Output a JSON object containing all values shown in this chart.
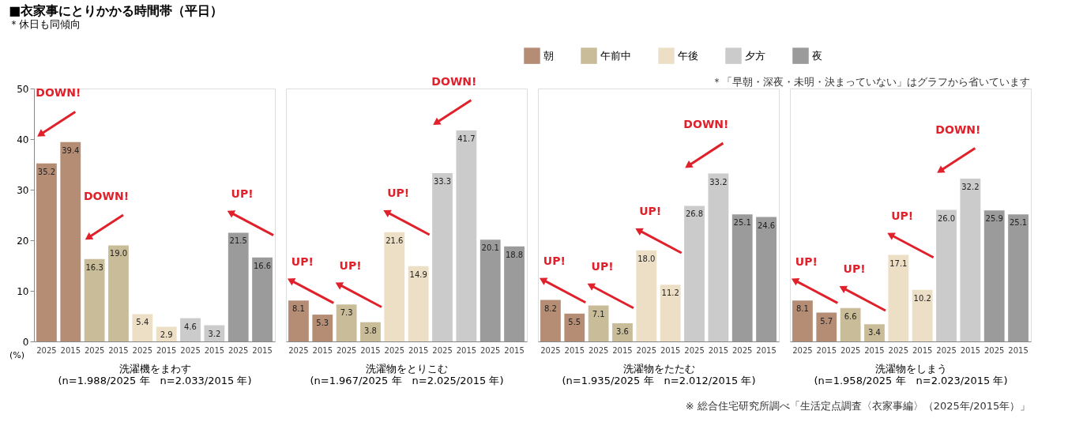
{
  "chart_data": [
    {
      "type": "bar",
      "title": "■衣家事にとりかかる時間帯（平日）",
      "subtitle": "＊休日も同傾向",
      "xlabel": "洗濯機をまわす",
      "ylabel": "(%)",
      "legend": "top right",
      "ylim": [
        0,
        50
      ],
      "yticks": [
        0,
        10,
        20,
        30,
        40,
        50
      ],
      "categories": [
        "2025",
        "2015",
        "2025",
        "2015",
        "2025",
        "2015",
        "2025",
        "2015",
        "2025",
        "2015"
      ],
      "series": [
        {
          "name": "朝",
          "color": "#b58d74",
          "values": [
            35.2,
            39.4,
            null,
            null,
            null,
            null,
            null,
            null,
            null,
            null
          ],
          "value_labels": [
            "35.2",
            "39.4",
            null,
            null,
            null,
            null,
            null,
            null,
            null,
            null
          ]
        },
        {
          "name": "午前中",
          "color": "#c9bc98",
          "values": [
            null,
            null,
            16.3,
            19.0,
            null,
            null,
            null,
            null,
            null,
            null
          ],
          "value_labels": [
            null,
            null,
            "16.3",
            "19.0",
            null,
            null,
            null,
            null,
            null,
            null
          ]
        },
        {
          "name": "午後",
          "color": "#ecdfc6",
          "values": [
            null,
            null,
            null,
            null,
            5.4,
            2.9,
            null,
            null,
            null,
            null
          ],
          "value_labels": [
            null,
            null,
            null,
            null,
            "5.4",
            "2.9",
            null,
            null,
            null,
            null
          ]
        },
        {
          "name": "夕方",
          "color": "#cbcbcb",
          "values": [
            null,
            null,
            null,
            null,
            null,
            null,
            4.6,
            3.2,
            null,
            null
          ],
          "value_labels": [
            null,
            null,
            null,
            null,
            null,
            null,
            "4.6",
            "3.2",
            null,
            null
          ]
        },
        {
          "name": "夜",
          "color": "#9b9b9b",
          "values": [
            null,
            null,
            null,
            null,
            null,
            null,
            null,
            null,
            21.5,
            16.6
          ],
          "value_labels": [
            null,
            null,
            null,
            null,
            null,
            null,
            null,
            null,
            "21.5",
            "16.6"
          ]
        }
      ],
      "annotations": [
        "(n=1.988/2025 年　n=2.033/2015 年)",
        "DOWN!",
        "DOWN!",
        "UP!"
      ]
    },
    {
      "type": "bar",
      "xlabel": "洗濯物をとりこむ",
      "tick_labels": "x",
      "ylim": [
        0,
        50
      ],
      "categories": [
        "2025",
        "2015",
        "2025",
        "2015",
        "2025",
        "2015",
        "2025",
        "2015",
        "2025",
        "2015"
      ],
      "series": [
        {
          "name": "朝",
          "color": "#b58d74",
          "values": [
            8.1,
            5.3,
            null,
            null,
            null,
            null,
            null,
            null,
            null,
            null
          ],
          "value_labels": [
            "8.1",
            "5.3",
            null,
            null,
            null,
            null,
            null,
            null,
            null,
            null
          ]
        },
        {
          "name": "午前中",
          "color": "#c9bc98",
          "values": [
            null,
            null,
            7.3,
            3.8,
            null,
            null,
            null,
            null,
            null,
            null
          ],
          "value_labels": [
            null,
            null,
            "7.3",
            "3.8",
            null,
            null,
            null,
            null,
            null,
            null
          ]
        },
        {
          "name": "午後",
          "color": "#ecdfc6",
          "values": [
            null,
            null,
            null,
            null,
            21.6,
            14.9,
            null,
            null,
            null,
            null
          ],
          "value_labels": [
            null,
            null,
            null,
            null,
            "21.6",
            "14.9",
            null,
            null,
            null,
            null
          ]
        },
        {
          "name": "夕方",
          "color": "#cbcbcb",
          "values": [
            null,
            null,
            null,
            null,
            null,
            null,
            33.3,
            41.7,
            null,
            null
          ],
          "value_labels": [
            null,
            null,
            null,
            null,
            null,
            null,
            "33.3",
            "41.7",
            null,
            null
          ]
        },
        {
          "name": "夜",
          "color": "#9b9b9b",
          "values": [
            null,
            null,
            null,
            null,
            null,
            null,
            null,
            null,
            20.1,
            18.8
          ],
          "value_labels": [
            null,
            null,
            null,
            null,
            null,
            null,
            null,
            null,
            "20.1",
            "18.8"
          ]
        }
      ],
      "annotations": [
        "(n=1.967/2025 年　n=2.025/2015 年)",
        "UP!",
        "UP!",
        "UP!",
        "DOWN!"
      ]
    },
    {
      "type": "bar",
      "xlabel": "洗濯物をたたむ",
      "tick_labels": "x",
      "ylim": [
        0,
        50
      ],
      "categories": [
        "2025",
        "2015",
        "2025",
        "2015",
        "2025",
        "2015",
        "2025",
        "2015",
        "2025",
        "2015"
      ],
      "series": [
        {
          "name": "朝",
          "color": "#b58d74",
          "values": [
            8.2,
            5.5,
            null,
            null,
            null,
            null,
            null,
            null,
            null,
            null
          ],
          "value_labels": [
            "8.2",
            "5.5",
            null,
            null,
            null,
            null,
            null,
            null,
            null,
            null
          ]
        },
        {
          "name": "午前中",
          "color": "#c9bc98",
          "values": [
            null,
            null,
            7.1,
            3.6,
            null,
            null,
            null,
            null,
            null,
            null
          ],
          "value_labels": [
            null,
            null,
            "7.1",
            "3.6",
            null,
            null,
            null,
            null,
            null,
            null
          ]
        },
        {
          "name": "午後",
          "color": "#ecdfc6",
          "values": [
            null,
            null,
            null,
            null,
            18.0,
            11.2,
            null,
            null,
            null,
            null
          ],
          "value_labels": [
            null,
            null,
            null,
            null,
            "18.0",
            "11.2",
            null,
            null,
            null,
            null
          ]
        },
        {
          "name": "夕方",
          "color": "#cbcbcb",
          "values": [
            null,
            null,
            null,
            null,
            null,
            null,
            26.8,
            33.2,
            null,
            null
          ],
          "value_labels": [
            null,
            null,
            null,
            null,
            null,
            null,
            "26.8",
            "33.2",
            null,
            null
          ]
        },
        {
          "name": "夜",
          "color": "#9b9b9b",
          "values": [
            null,
            null,
            null,
            null,
            null,
            null,
            null,
            null,
            25.1,
            24.6
          ],
          "value_labels": [
            null,
            null,
            null,
            null,
            null,
            null,
            null,
            null,
            "25.1",
            "24.6"
          ]
        }
      ],
      "annotations": [
        "(n=1.935/2025 年　n=2.012/2015 年)",
        "UP!",
        "UP!",
        "UP!",
        "DOWN!"
      ]
    },
    {
      "type": "bar",
      "xlabel": "洗濯物をしまう",
      "tick_labels": "x",
      "ylim": [
        0,
        50
      ],
      "categories": [
        "2025",
        "2015",
        "2025",
        "2015",
        "2025",
        "2015",
        "2025",
        "2015",
        "2025",
        "2015"
      ],
      "series": [
        {
          "name": "朝",
          "color": "#b58d74",
          "values": [
            8.1,
            5.7,
            null,
            null,
            null,
            null,
            null,
            null,
            null,
            null
          ],
          "value_labels": [
            "8.1",
            "5.7",
            null,
            null,
            null,
            null,
            null,
            null,
            null,
            null
          ]
        },
        {
          "name": "午前中",
          "color": "#c9bc98",
          "values": [
            null,
            null,
            6.6,
            3.4,
            null,
            null,
            null,
            null,
            null,
            null
          ],
          "value_labels": [
            null,
            null,
            "6.6",
            "3.4",
            null,
            null,
            null,
            null,
            null,
            null
          ]
        },
        {
          "name": "午後",
          "color": "#ecdfc6",
          "values": [
            null,
            null,
            null,
            null,
            17.1,
            10.2,
            null,
            null,
            null,
            null
          ],
          "value_labels": [
            null,
            null,
            null,
            null,
            "17.1",
            "10.2",
            null,
            null,
            null,
            null
          ]
        },
        {
          "name": "夕方",
          "color": "#cbcbcb",
          "values": [
            null,
            null,
            null,
            null,
            null,
            null,
            26.0,
            32.2,
            null,
            null
          ],
          "value_labels": [
            null,
            null,
            null,
            null,
            null,
            null,
            "26.0",
            "32.2",
            null,
            null
          ]
        },
        {
          "name": "夜",
          "color": "#9b9b9b",
          "values": [
            null,
            null,
            null,
            null,
            null,
            null,
            null,
            null,
            25.9,
            25.1
          ],
          "value_labels": [
            null,
            null,
            null,
            null,
            null,
            null,
            null,
            null,
            "25.9",
            "25.1"
          ]
        }
      ],
      "annotations": [
        "(n=1.958/2025 年　n=2.023/2015 年)",
        "UP!",
        "UP!",
        "UP!",
        "DOWN!"
      ]
    },
    {
      "type": "other",
      "annotations": [
        "＊「早朝・深夜・未明・決まっていない」はグラフから省いています",
        "※ 総合住宅研究所調べ「生活定点調査〈衣家事編〉（2025年/2015年）」"
      ]
    }
  ]
}
